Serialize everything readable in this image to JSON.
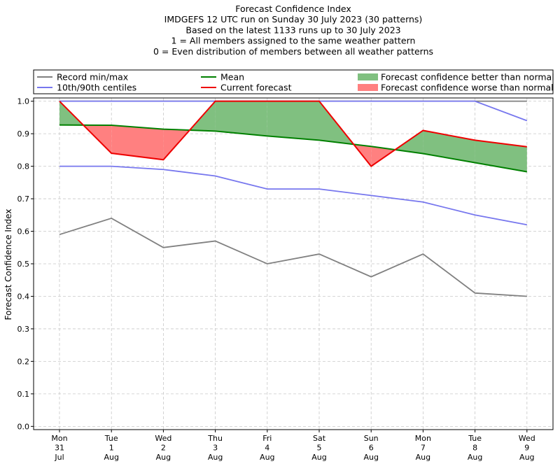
{
  "chart_data": {
    "type": "line",
    "title_lines": [
      "Forecast Confidence Index",
      "IMDGEFS 12 UTC run on Sunday 30 July 2023 (30 patterns)",
      "Based on the latest 1133 runs up to 30 July 2023",
      "1 = All members assigned to the same weather pattern",
      "0 = Even distribution of members between all weather patterns"
    ],
    "ylabel": "Forecast Confidence Index",
    "ylim": [
      -0.01,
      1.01
    ],
    "yticks": [
      "0.0",
      "0.1",
      "0.2",
      "0.3",
      "0.4",
      "0.5",
      "0.6",
      "0.7",
      "0.8",
      "0.9",
      "1.0"
    ],
    "grid": true,
    "legend_position": "top",
    "x_labels": [
      [
        "Mon",
        "31",
        "Jul"
      ],
      [
        "Tue",
        "1",
        "Aug"
      ],
      [
        "Wed",
        "2",
        "Aug"
      ],
      [
        "Thu",
        "3",
        "Aug"
      ],
      [
        "Fri",
        "4",
        "Aug"
      ],
      [
        "Sat",
        "5",
        "Aug"
      ],
      [
        "Sun",
        "6",
        "Aug"
      ],
      [
        "Mon",
        "7",
        "Aug"
      ],
      [
        "Tue",
        "8",
        "Aug"
      ],
      [
        "Wed",
        "9",
        "Aug"
      ]
    ],
    "series": [
      {
        "key": "record_max",
        "values": [
          1.0,
          1.0,
          1.0,
          1.0,
          1.0,
          1.0,
          1.0,
          1.0,
          1.0,
          1.0
        ],
        "color": "#808080"
      },
      {
        "key": "record_min",
        "values": [
          0.59,
          0.64,
          0.55,
          0.57,
          0.5,
          0.53,
          0.46,
          0.53,
          0.41,
          0.4
        ],
        "color": "#808080"
      },
      {
        "key": "p90",
        "values": [
          1.0,
          1.0,
          1.0,
          1.0,
          1.0,
          1.0,
          1.0,
          1.0,
          1.0,
          0.94
        ],
        "color": "#7777ee"
      },
      {
        "key": "p10",
        "values": [
          0.8,
          0.8,
          0.79,
          0.77,
          0.73,
          0.73,
          0.71,
          0.69,
          0.65,
          0.62
        ],
        "color": "#7777ee"
      },
      {
        "key": "mean",
        "values": [
          0.927,
          0.926,
          0.914,
          0.908,
          0.893,
          0.88,
          0.861,
          0.839,
          0.811,
          0.783
        ],
        "color": "#008000"
      },
      {
        "key": "current",
        "values": [
          1.0,
          0.84,
          0.82,
          1.0,
          1.0,
          1.0,
          0.8,
          0.91,
          0.88,
          0.86
        ],
        "color": "#ee0000"
      }
    ],
    "legend": [
      {
        "label": "Record min/max",
        "kind": "line",
        "color": "#808080"
      },
      {
        "label": "10th/90th centiles",
        "kind": "line",
        "color": "#7777ee"
      },
      {
        "label": "Mean",
        "kind": "line",
        "color": "#008000"
      },
      {
        "label": "Current forecast",
        "kind": "line",
        "color": "#ee0000"
      },
      {
        "label": "Forecast confidence better than normal",
        "kind": "patch",
        "color": "#80c080"
      },
      {
        "label": "Forecast confidence worse than normal",
        "kind": "patch",
        "color": "#ff8080"
      }
    ],
    "fill_better_color": "#80c080",
    "fill_worse_color": "#ff8080"
  }
}
